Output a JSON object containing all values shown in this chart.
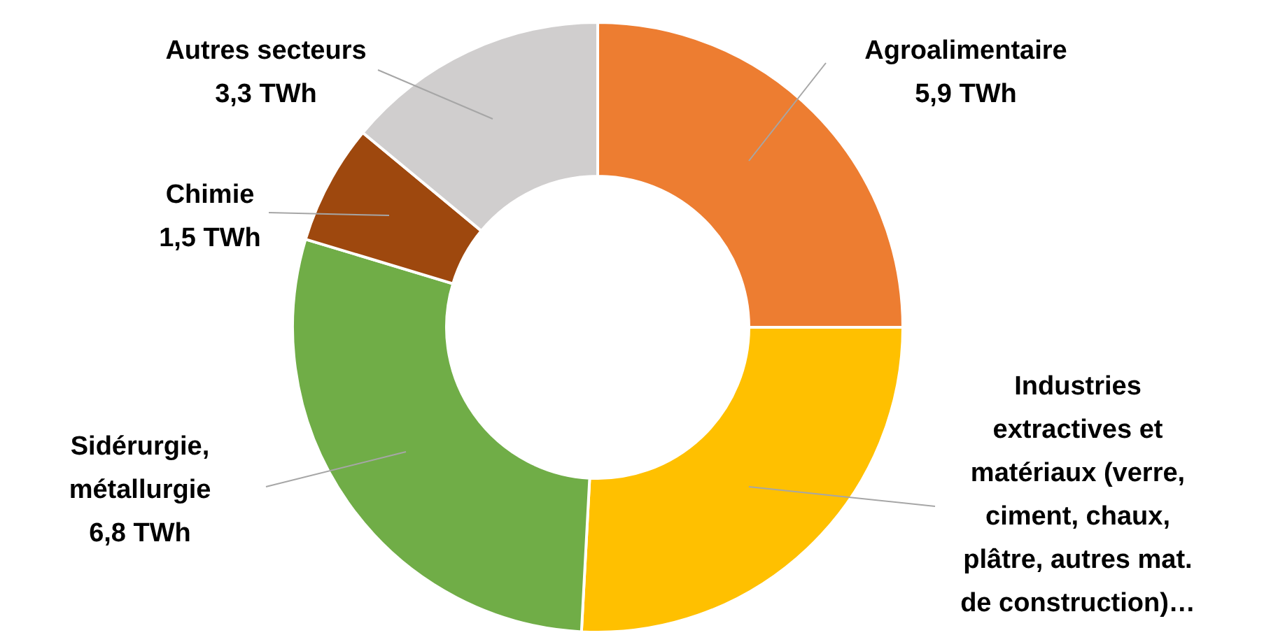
{
  "chart_data": {
    "type": "donut",
    "categories": [
      "Agroalimentaire",
      "Industries extractives et matériaux (verre, ciment, chaux, plâtre, autres mat. de construction)…",
      "Sidérurgie, métallurgie",
      "Chimie",
      "Autres secteurs"
    ],
    "values": [
      5.9,
      6.1,
      6.8,
      1.5,
      3.3
    ],
    "value_labels": [
      "5,9 TWh",
      null,
      "6,8 TWh",
      "1,5 TWh",
      "3,3 TWh"
    ],
    "colors": [
      "#ed7d31",
      "#ffc000",
      "#70ad47",
      "#9e480e",
      "#d0cece"
    ],
    "legend": false
  }
}
